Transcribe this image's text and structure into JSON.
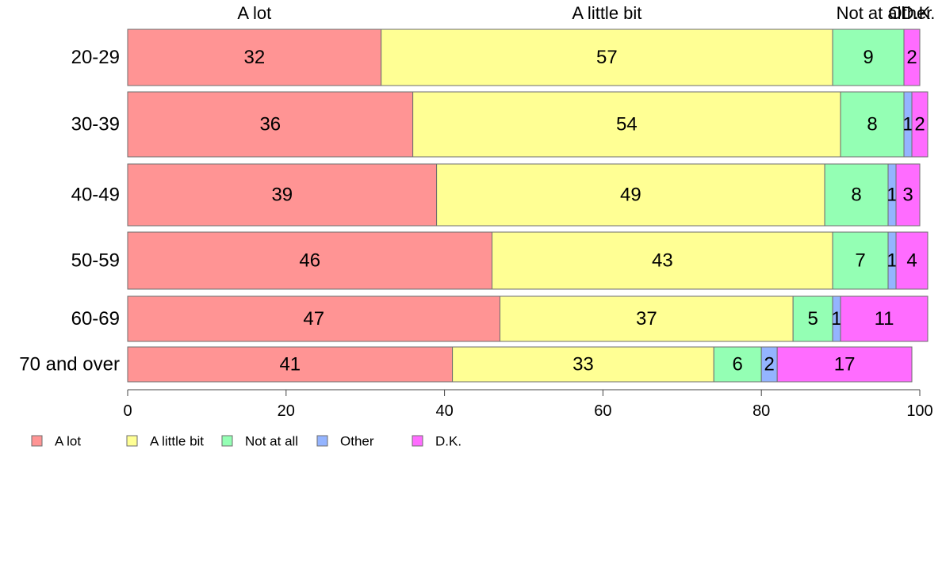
{
  "chart_data": {
    "type": "bar",
    "orientation": "horizontal",
    "stacked": true,
    "title": "",
    "xlabel": "",
    "ylabel": "",
    "xlim": [
      0,
      100
    ],
    "x_ticks": [
      0,
      20,
      40,
      60,
      80,
      100
    ],
    "grid": false,
    "legend_position": "bottom-left",
    "categories": [
      "20-29",
      "30-39",
      "40-49",
      "50-59",
      "60-69",
      "70 and over"
    ],
    "series": [
      {
        "name": "A lot",
        "color": "#ff9494",
        "values": [
          32,
          36,
          39,
          46,
          47,
          41
        ]
      },
      {
        "name": "A little bit",
        "color": "#ffff94",
        "values": [
          57,
          54,
          49,
          43,
          37,
          33
        ]
      },
      {
        "name": "Not at all",
        "color": "#94ffb4",
        "values": [
          9,
          8,
          8,
          7,
          5,
          6
        ]
      },
      {
        "name": "Other",
        "color": "#94b4ff",
        "values": [
          0,
          1,
          1,
          1,
          1,
          2
        ]
      },
      {
        "name": "D.K.",
        "color": "#ff6cff",
        "values": [
          2,
          2,
          3,
          4,
          11,
          17
        ]
      }
    ],
    "top_labels": [
      "A lot",
      "A little bit",
      "Not at all",
      "Other",
      "D.K."
    ]
  }
}
